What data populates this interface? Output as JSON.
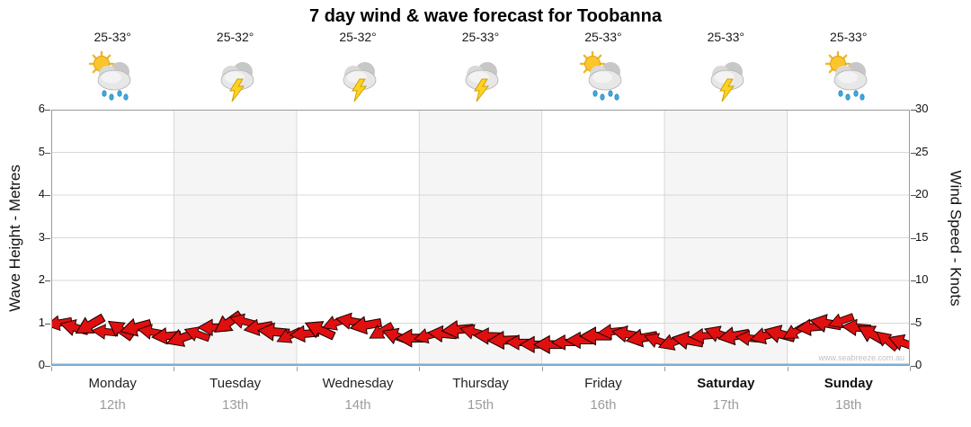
{
  "title": "7 day wind & wave forecast for Toobanna",
  "watermark": "www.seabreeze.com.au",
  "left_axis": {
    "label": "Wave Height - Metres",
    "ticks": [
      "0",
      "1",
      "2",
      "3",
      "4",
      "5",
      "6"
    ]
  },
  "right_axis": {
    "label": "Wind Speed - Knots",
    "ticks": [
      "0",
      "5",
      "10",
      "15",
      "20",
      "25",
      "30"
    ]
  },
  "days": [
    {
      "name": "Monday",
      "date": "12th",
      "temp": "25-33°",
      "icon": "sun-shower-icon",
      "weekend": false
    },
    {
      "name": "Tuesday",
      "date": "13th",
      "temp": "25-32°",
      "icon": "storm-icon",
      "weekend": false
    },
    {
      "name": "Wednesday",
      "date": "14th",
      "temp": "25-32°",
      "icon": "storm-icon",
      "weekend": false
    },
    {
      "name": "Thursday",
      "date": "15th",
      "temp": "25-33°",
      "icon": "storm-icon",
      "weekend": false
    },
    {
      "name": "Friday",
      "date": "16th",
      "temp": "25-33°",
      "icon": "sun-shower-icon",
      "weekend": false
    },
    {
      "name": "Saturday",
      "date": "17th",
      "temp": "25-33°",
      "icon": "storm-icon",
      "weekend": true
    },
    {
      "name": "Sunday",
      "date": "18th",
      "temp": "25-33°",
      "icon": "sun-shower-icon",
      "weekend": true
    }
  ],
  "colors": {
    "arrow_fill": "#e01010",
    "arrow_stroke": "#1a0000",
    "grid": "#d8d8d8",
    "plot_border": "#9a9a9a",
    "zero_line": "#7fb2d9",
    "band_main": "#ffffff",
    "band_alt": "#f5f5f5",
    "date_text": "#9c9c9c"
  },
  "chart_data": {
    "type": "scatter",
    "subtype": "direction-arrows",
    "title": "7 day wind & wave forecast for Toobanna",
    "categories": [
      "Monday 12th",
      "Tuesday 13th",
      "Wednesday 14th",
      "Thursday 15th",
      "Friday 16th",
      "Saturday 17th",
      "Sunday 18th"
    ],
    "points_per_day": 8,
    "y_left": {
      "label": "Wave Height - Metres",
      "range": [
        0,
        6
      ],
      "ticks": [
        0,
        1,
        2,
        3,
        4,
        5,
        6
      ]
    },
    "y_right": {
      "label": "Wind Speed - Knots",
      "range": [
        0,
        30
      ],
      "ticks": [
        0,
        5,
        10,
        15,
        20,
        25,
        30
      ]
    },
    "grid": true,
    "legend": "none",
    "series": [
      {
        "name": "Wind / wave direction arrows",
        "color": "#e01010",
        "wave_height_m": [
          1.0,
          0.9,
          0.95,
          0.8,
          0.85,
          0.9,
          0.8,
          0.7,
          0.65,
          0.75,
          0.9,
          1.0,
          1.05,
          0.9,
          0.8,
          0.7,
          0.75,
          0.85,
          1.0,
          1.05,
          0.95,
          0.8,
          0.7,
          0.65,
          0.7,
          0.75,
          0.85,
          0.8,
          0.7,
          0.6,
          0.55,
          0.5,
          0.5,
          0.55,
          0.6,
          0.7,
          0.8,
          0.75,
          0.65,
          0.6,
          0.55,
          0.6,
          0.7,
          0.75,
          0.7,
          0.65,
          0.7,
          0.75,
          0.8,
          0.9,
          1.0,
          1.05,
          0.9,
          0.75,
          0.6,
          0.55
        ],
        "wind_speed_knots": [
          5,
          4.5,
          4.8,
          4,
          4.3,
          4.5,
          4,
          3.5,
          3.3,
          3.8,
          4.5,
          5,
          5.3,
          4.5,
          4,
          3.5,
          3.8,
          4.3,
          5,
          5.3,
          4.8,
          4,
          3.5,
          3.3,
          3.5,
          3.8,
          4.3,
          4,
          3.5,
          3,
          2.8,
          2.5,
          2.5,
          2.8,
          3,
          3.5,
          4,
          3.8,
          3.3,
          3,
          2.8,
          3,
          3.5,
          3.8,
          3.5,
          3.3,
          3.5,
          3.8,
          4,
          4.5,
          5,
          5.3,
          4.5,
          3.8,
          3,
          2.8
        ],
        "direction_deg": [
          170,
          195,
          150,
          185,
          215,
          165,
          190,
          175,
          160,
          200,
          180,
          145,
          195,
          170,
          185,
          155,
          175,
          205,
          160,
          190,
          170,
          150,
          200,
          180,
          165,
          185,
          175,
          195,
          182,
          178,
          180,
          180,
          180,
          180,
          180,
          180,
          175,
          190,
          170,
          200,
          160,
          190,
          175,
          200,
          170,
          185,
          165,
          195,
          150,
          175,
          190,
          160,
          185,
          210,
          220,
          200
        ]
      }
    ]
  }
}
